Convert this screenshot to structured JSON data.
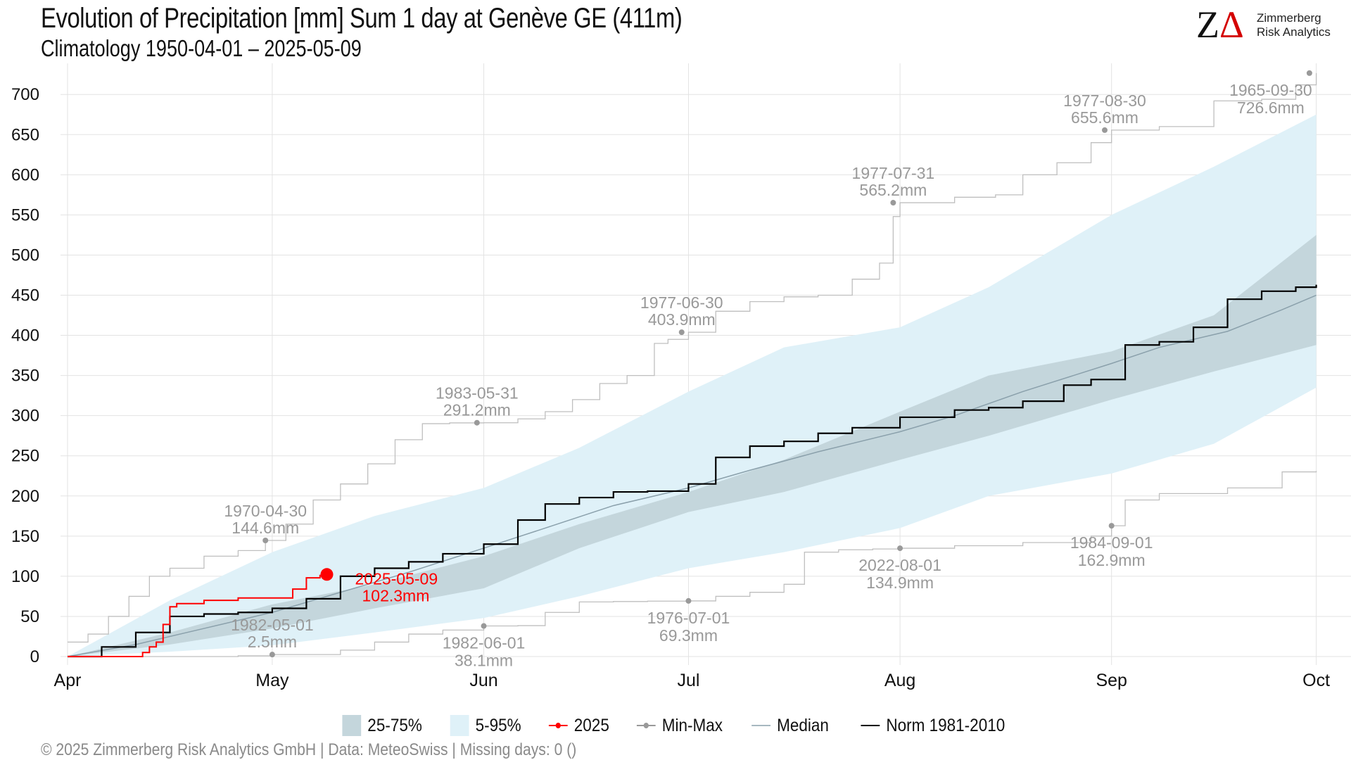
{
  "header": {
    "title": "Evolution of Precipitation [mm] Sum 1 day at Genève  GE (411m)",
    "subtitle": "Climatology 1950-04-01 – 2025-05-09"
  },
  "logo": {
    "mark_z": "Z",
    "mark_delta": "Δ",
    "line1": "Zimmerberg",
    "line2": "Risk Analytics"
  },
  "footer": {
    "text": "©  2025 Zimmerberg Risk Analytics GmbH | Data: MeteoSwiss | Missing days: 0 ()"
  },
  "legend": [
    {
      "key": "band50",
      "label": "25-75%"
    },
    {
      "key": "band90",
      "label": "5-95%"
    },
    {
      "key": "current",
      "label": "2025"
    },
    {
      "key": "minmax",
      "label": "Min-Max"
    },
    {
      "key": "median",
      "label": "Median"
    },
    {
      "key": "norm",
      "label": "Norm 1981-2010"
    }
  ],
  "colors": {
    "band90": "#dff1f8",
    "band50": "#c4d6dc",
    "current": "#ff0000",
    "minmax": "#bfbfbf",
    "minmax_point": "#999999",
    "median": "#8aa0ab",
    "norm": "#000000",
    "grid": "#e3e3e3",
    "annotation": "#999999"
  },
  "chart_data": {
    "type": "area",
    "x_unit": "day of season (0 = 1 Apr)",
    "xlim": [
      0,
      185
    ],
    "ylim": [
      0,
      730
    ],
    "grid": true,
    "legend_position": "bottom",
    "x_ticks": [
      {
        "day": 0,
        "label": "Apr"
      },
      {
        "day": 30,
        "label": "May"
      },
      {
        "day": 61,
        "label": "Jun"
      },
      {
        "day": 91,
        "label": "Jul"
      },
      {
        "day": 122,
        "label": "Aug"
      },
      {
        "day": 153,
        "label": "Sep"
      },
      {
        "day": 183,
        "label": "Oct"
      }
    ],
    "y_ticks": [
      0,
      50,
      100,
      150,
      200,
      250,
      300,
      350,
      400,
      450,
      500,
      550,
      600,
      650,
      700
    ],
    "band_5_95": {
      "x": [
        0,
        15,
        30,
        45,
        61,
        75,
        91,
        105,
        122,
        135,
        153,
        168,
        183
      ],
      "low": [
        0,
        6,
        14,
        30,
        48,
        75,
        110,
        130,
        160,
        200,
        228,
        265,
        335
      ],
      "high": [
        0,
        70,
        130,
        175,
        210,
        260,
        330,
        385,
        410,
        460,
        550,
        610,
        675
      ]
    },
    "band_25_75": {
      "x": [
        0,
        15,
        30,
        45,
        61,
        75,
        91,
        105,
        122,
        135,
        153,
        168,
        183
      ],
      "low": [
        0,
        15,
        35,
        60,
        85,
        135,
        180,
        205,
        245,
        275,
        320,
        355,
        388
      ],
      "high": [
        0,
        30,
        65,
        90,
        125,
        165,
        205,
        245,
        305,
        350,
        380,
        425,
        525
      ]
    },
    "median": {
      "x": [
        0,
        10,
        20,
        30,
        40,
        50,
        61,
        70,
        80,
        91,
        100,
        110,
        122,
        130,
        140,
        153,
        160,
        170,
        178,
        183
      ],
      "y": [
        0,
        15,
        35,
        55,
        80,
        105,
        135,
        160,
        188,
        210,
        232,
        255,
        280,
        300,
        330,
        365,
        385,
        405,
        432,
        450
      ]
    },
    "norm_1981_2010": {
      "x": [
        0,
        5,
        10,
        15,
        20,
        25,
        30,
        35,
        40,
        45,
        50,
        55,
        61,
        66,
        70,
        75,
        80,
        85,
        91,
        95,
        100,
        105,
        110,
        115,
        122,
        130,
        135,
        140,
        146,
        150,
        155,
        160,
        165,
        170,
        175,
        180,
        183
      ],
      "y": [
        0,
        12,
        30,
        50,
        53,
        55,
        60,
        72,
        100,
        110,
        118,
        128,
        140,
        170,
        190,
        198,
        205,
        206,
        215,
        248,
        262,
        268,
        278,
        285,
        298,
        307,
        310,
        318,
        338,
        345,
        388,
        392,
        410,
        445,
        455,
        460,
        463
      ]
    },
    "min_max": {
      "max": {
        "x": [
          0,
          3,
          6,
          9,
          12,
          15,
          20,
          25,
          29,
          32,
          36,
          40,
          44,
          48,
          52,
          56,
          61,
          66,
          70,
          74,
          78,
          82,
          86,
          88,
          91,
          95,
          100,
          105,
          110,
          115,
          119,
          121,
          122,
          130,
          136,
          140,
          145,
          150,
          153,
          160,
          168,
          175,
          180,
          183
        ],
        "y": [
          18,
          28,
          50,
          75,
          100,
          110,
          125,
          132,
          144.6,
          165,
          195,
          215,
          240,
          270,
          290,
          291,
          291.2,
          296,
          305,
          320,
          340,
          350,
          390,
          395,
          403.9,
          430,
          442,
          448,
          450,
          470,
          490,
          548,
          565.2,
          572,
          575,
          600,
          615,
          640,
          655.6,
          660,
          692,
          694,
          712,
          726.6
        ]
      },
      "min": {
        "x": [
          0,
          15,
          25,
          30,
          40,
          45,
          50,
          55,
          61,
          66,
          70,
          75,
          80,
          85,
          91,
          95,
          100,
          105,
          108,
          113,
          118,
          122,
          130,
          140,
          150,
          153,
          155,
          160,
          170,
          178,
          183
        ],
        "y": [
          0,
          0,
          1,
          2.5,
          8,
          18,
          28,
          33,
          38.1,
          38.5,
          55,
          68,
          68.5,
          69,
          69.3,
          75,
          80,
          90,
          130,
          133,
          134,
          134.9,
          138,
          142,
          150,
          162.9,
          195,
          203,
          210,
          230,
          231
        ]
      }
    },
    "current_2025": {
      "x": [
        0,
        10,
        11,
        12,
        13,
        14,
        15,
        16,
        20,
        25,
        30,
        33,
        35,
        37,
        38
      ],
      "y": [
        0,
        0,
        5,
        12,
        18,
        40,
        62,
        66,
        70,
        73,
        73,
        84,
        98,
        101,
        102.3
      ]
    },
    "annotations": [
      {
        "x": 29,
        "y": 144.6,
        "date": "1970-04-30",
        "value": "144.6mm",
        "color": "#999999",
        "side": "above"
      },
      {
        "x": 30,
        "y": 2.5,
        "date": "1982-05-01",
        "value": "2.5mm",
        "color": "#999999",
        "side": "above"
      },
      {
        "x": 60,
        "y": 291.2,
        "date": "1983-05-31",
        "value": "291.2mm",
        "color": "#999999",
        "side": "above"
      },
      {
        "x": 61,
        "y": 38.1,
        "date": "1982-06-01",
        "value": "38.1mm",
        "color": "#999999",
        "side": "below"
      },
      {
        "x": 90,
        "y": 403.9,
        "date": "1977-06-30",
        "value": "403.9mm",
        "color": "#999999",
        "side": "above"
      },
      {
        "x": 91,
        "y": 69.3,
        "date": "1976-07-01",
        "value": "69.3mm",
        "color": "#999999",
        "side": "below"
      },
      {
        "x": 121,
        "y": 565.2,
        "date": "1977-07-31",
        "value": "565.2mm",
        "color": "#999999",
        "side": "above"
      },
      {
        "x": 122,
        "y": 134.9,
        "date": "2022-08-01",
        "value": "134.9mm",
        "color": "#999999",
        "side": "below"
      },
      {
        "x": 152,
        "y": 655.6,
        "date": "1977-08-30",
        "value": "655.6mm",
        "color": "#999999",
        "side": "above"
      },
      {
        "x": 153,
        "y": 162.9,
        "date": "1984-09-01",
        "value": "162.9mm",
        "color": "#999999",
        "side": "below"
      },
      {
        "x": 182,
        "y": 726.6,
        "date": "1965-09-30",
        "value": "726.6mm",
        "color": "#999999",
        "side": "below-left"
      },
      {
        "x": 38,
        "y": 102.3,
        "date": "2025-05-09",
        "value": "102.3mm",
        "color": "#ff0000",
        "side": "right"
      }
    ]
  }
}
